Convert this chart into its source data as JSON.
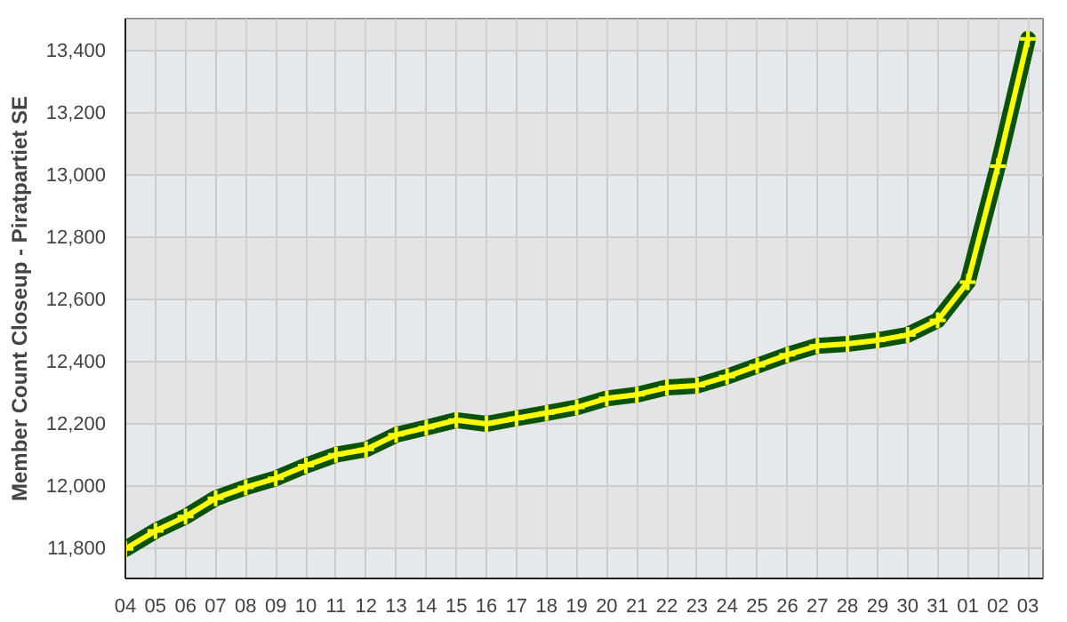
{
  "chart_data": {
    "type": "line",
    "ylabel": "Member Count Closeup - Piratpartiet SE",
    "categories": [
      "04",
      "05",
      "06",
      "07",
      "08",
      "09",
      "10",
      "11",
      "12",
      "13",
      "14",
      "15",
      "16",
      "17",
      "18",
      "19",
      "20",
      "21",
      "22",
      "23",
      "24",
      "25",
      "26",
      "27",
      "28",
      "29",
      "30",
      "31",
      "01",
      "02",
      "03"
    ],
    "ylim": [
      11700,
      13500
    ],
    "yticks": [
      {
        "value": 11800,
        "label": "11,800"
      },
      {
        "value": 12000,
        "label": "12,000"
      },
      {
        "value": 12200,
        "label": "12,200"
      },
      {
        "value": 12400,
        "label": "12,400"
      },
      {
        "value": 12600,
        "label": "12,600"
      },
      {
        "value": 12800,
        "label": "12,800"
      },
      {
        "value": 13000,
        "label": "13,000"
      },
      {
        "value": 13200,
        "label": "13,200"
      },
      {
        "value": 13400,
        "label": "13,400"
      }
    ],
    "grid": true,
    "series": [
      {
        "color": "#0b5209",
        "marker": "none",
        "values": [
          11795,
          11853,
          11899,
          11958,
          11993,
          12022,
          12063,
          12098,
          12115,
          12162,
          12185,
          12209,
          12197,
          12215,
          12232,
          12250,
          12279,
          12291,
          12314,
          12320,
          12349,
          12384,
          12419,
          12448,
          12454,
          12466,
          12483,
          12530,
          12653,
          13026,
          13435
        ]
      },
      {
        "color": "#ffff00",
        "marker": "cross",
        "values": [
          11795,
          11853,
          11899,
          11958,
          11993,
          12022,
          12063,
          12098,
          12115,
          12162,
          12185,
          12209,
          12197,
          12215,
          12232,
          12250,
          12279,
          12291,
          12314,
          12320,
          12349,
          12384,
          12419,
          12448,
          12454,
          12466,
          12483,
          12530,
          12653,
          13026,
          13435
        ]
      }
    ]
  }
}
